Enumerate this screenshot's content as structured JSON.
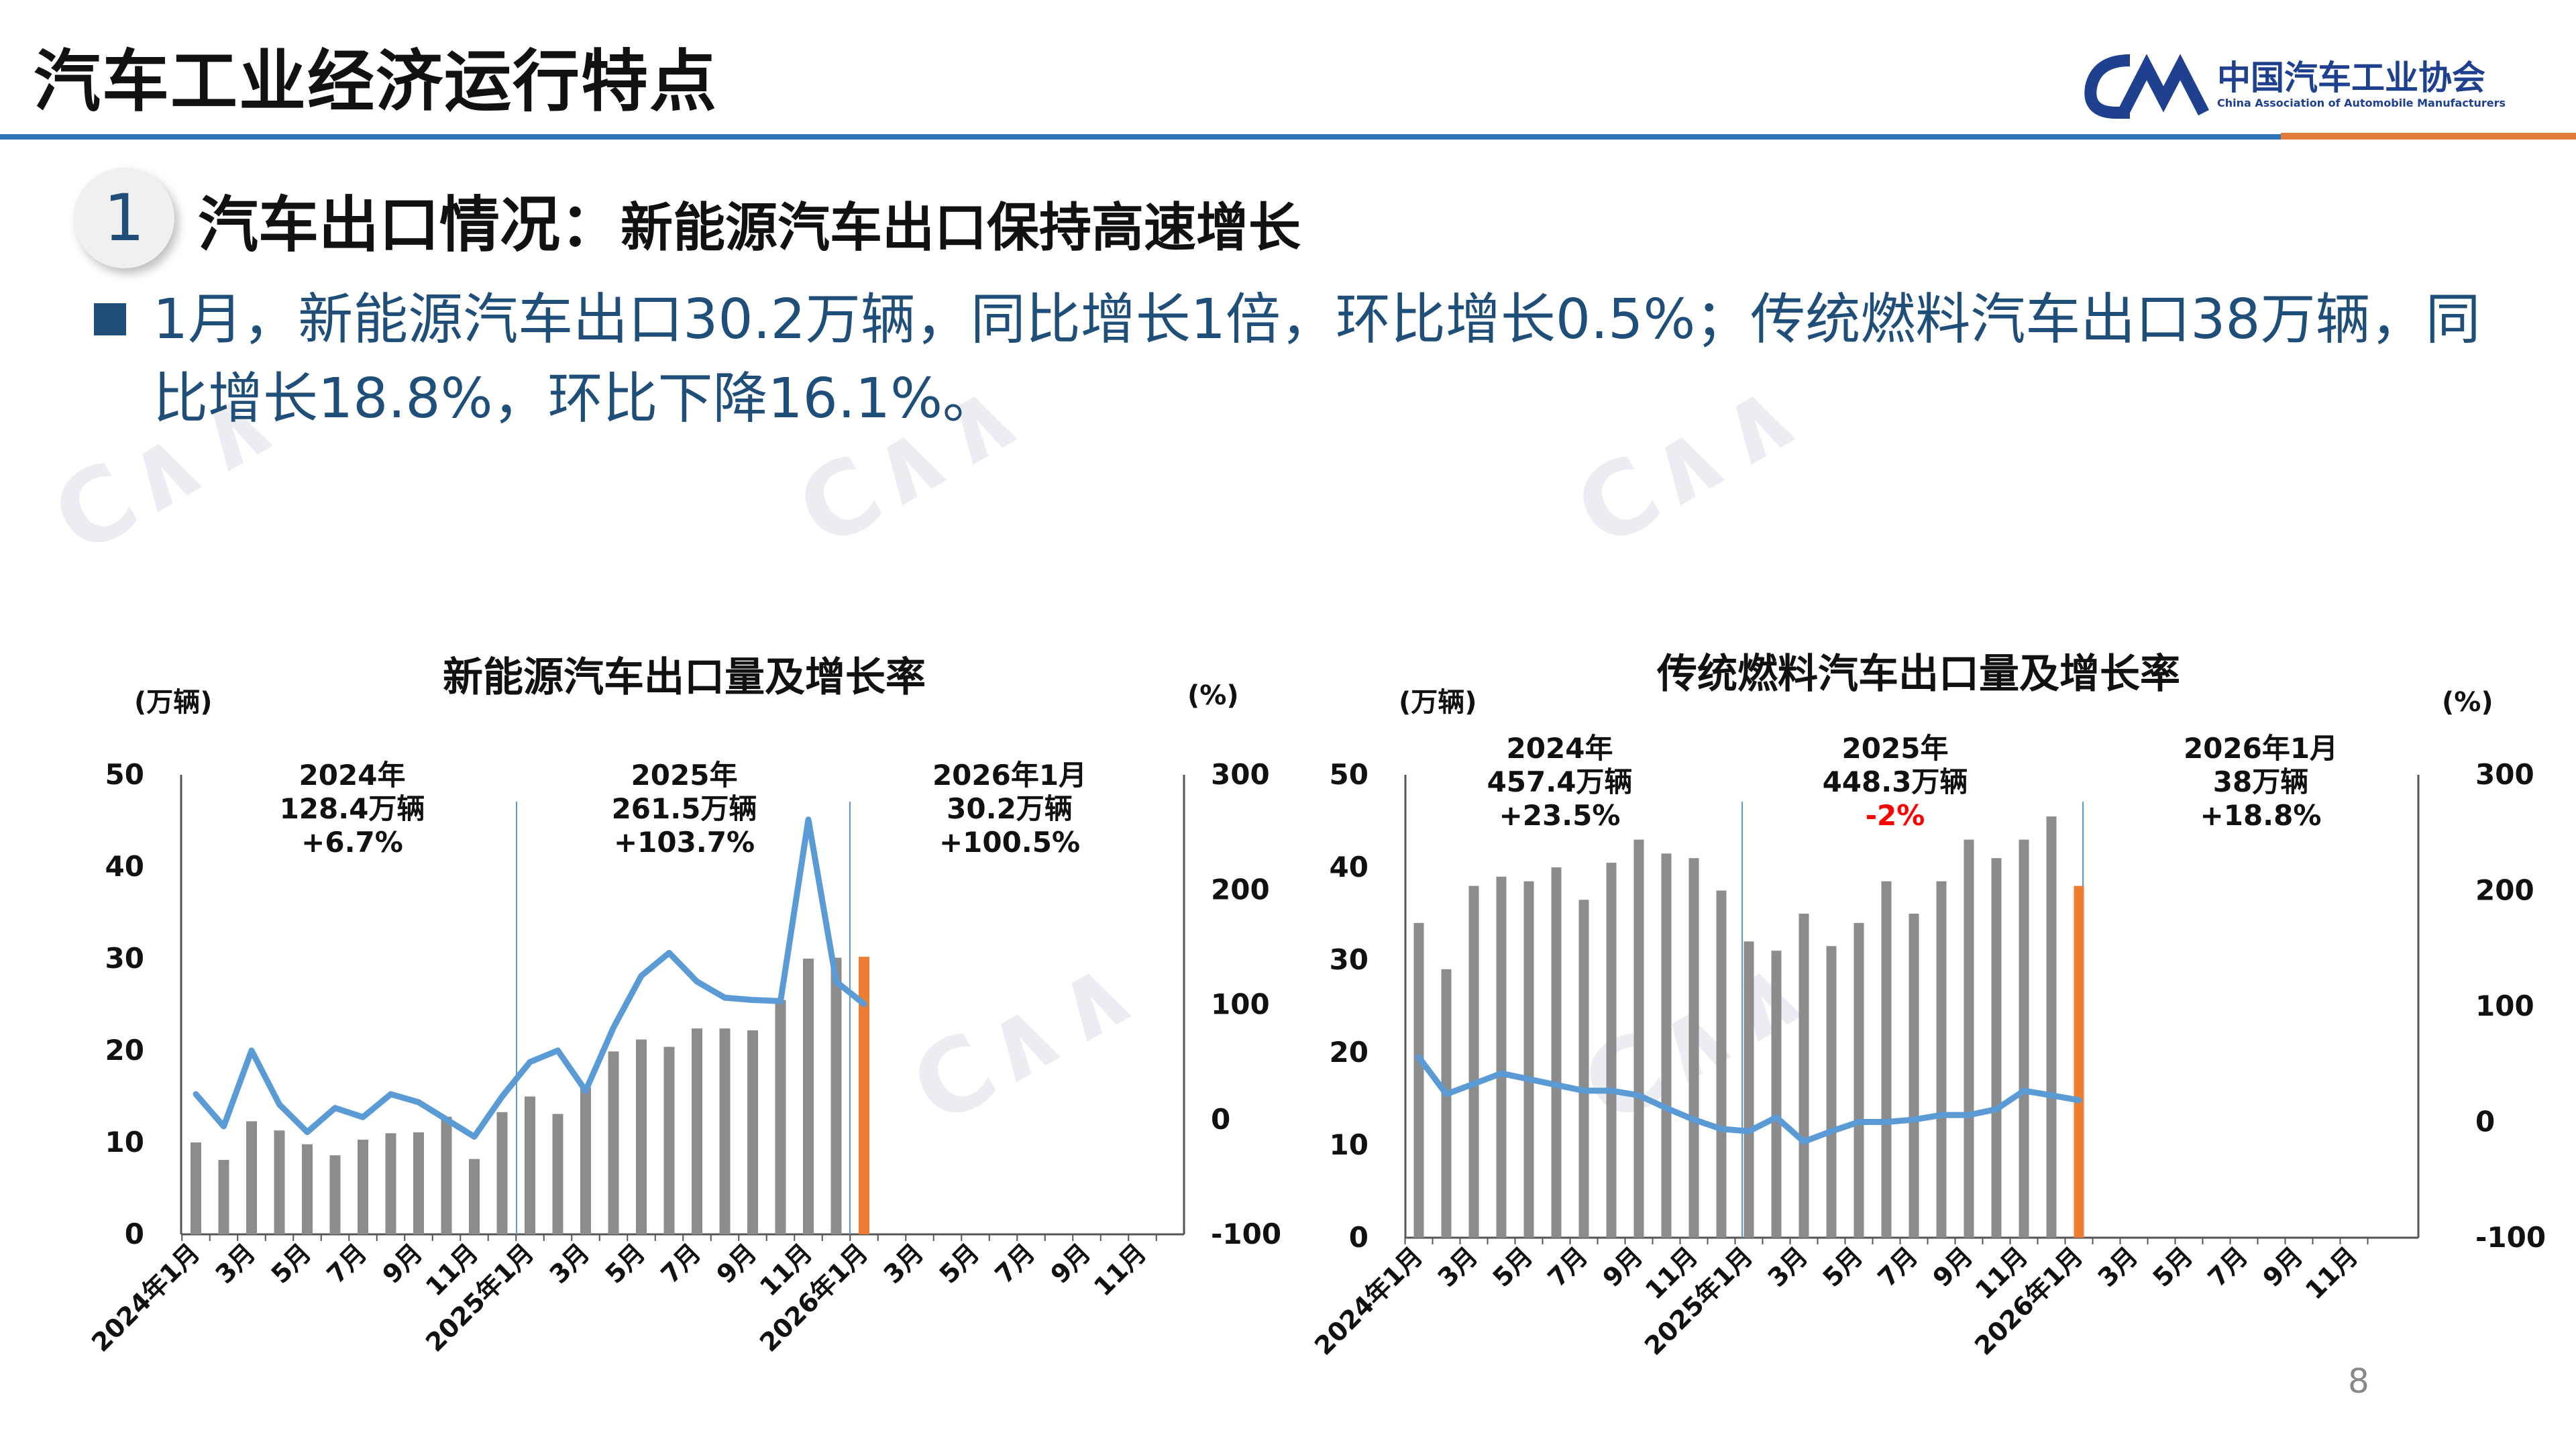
{
  "header": {
    "title": "汽车工业经济运行特点",
    "logo_cn": "中国汽车工业协会",
    "logo_en": "China Association of Automobile Manufacturers",
    "accent_color": "#2e75b6"
  },
  "section": {
    "number": "1",
    "title": "汽车出口情况：",
    "subtitle": "新能源汽车出口保持高速增长"
  },
  "bullet": "1月，新能源汽车出口30.2万辆，同比增长1倍，环比增长0.5%；传统燃料汽车出口38万辆，同比增长18.8%，环比下降16.1%。",
  "page_number": "8",
  "colors": {
    "bar": "#8c8c8c",
    "highlight_bar": "#ed7d31",
    "line": "#5b9bd5",
    "title_blue": "#1f4e79",
    "negative": "#ff0000"
  },
  "chart_data": [
    {
      "type": "bar",
      "title": "新能源汽车出口量及增长率",
      "left_unit": "(万辆)",
      "right_unit": "(%)",
      "left_ylim": [
        0,
        50
      ],
      "left_ticks": [
        "0",
        "10",
        "20",
        "30",
        "40",
        "50"
      ],
      "right_ylim": [
        -100,
        300
      ],
      "right_ticks": [
        "-100",
        "0",
        "100",
        "200",
        "300"
      ],
      "x_tick_labels": [
        "2024年1月",
        "3月",
        "5月",
        "7月",
        "9月",
        "11月",
        "2025年1月",
        "3月",
        "5月",
        "7月",
        "9月",
        "11月",
        "2026年1月",
        "3月",
        "5月",
        "7月",
        "9月",
        "11月"
      ],
      "categories": [
        "2024-01",
        "2024-02",
        "2024-03",
        "2024-04",
        "2024-05",
        "2024-06",
        "2024-07",
        "2024-08",
        "2024-09",
        "2024-10",
        "2024-11",
        "2024-12",
        "2025-01",
        "2025-02",
        "2025-03",
        "2025-04",
        "2025-05",
        "2025-06",
        "2025-07",
        "2025-08",
        "2025-09",
        "2025-10",
        "2025-11",
        "2025-12",
        "2026-01",
        "2026-02",
        "2026-03",
        "2026-04",
        "2026-05",
        "2026-06",
        "2026-07",
        "2026-08",
        "2026-09",
        "2026-10",
        "2026-11",
        "2026-12"
      ],
      "bars": [
        10.0,
        8.1,
        12.3,
        11.3,
        9.8,
        8.6,
        10.3,
        11.0,
        11.1,
        12.8,
        8.2,
        13.3,
        15.0,
        13.1,
        16.0,
        19.9,
        21.2,
        20.4,
        22.4,
        22.4,
        22.2,
        25.5,
        30.0,
        30.1,
        30.2
      ],
      "highlight_index": 24,
      "growth": [
        22,
        -6,
        60,
        13,
        -11,
        10,
        2,
        22,
        15,
        0,
        -15,
        20,
        50,
        60,
        25,
        80,
        125,
        145,
        120,
        106,
        104,
        103,
        261,
        120,
        100.5
      ],
      "annotations": [
        {
          "lines": [
            "2024年",
            "128.4万辆",
            "+6.7%"
          ]
        },
        {
          "lines": [
            "2025年",
            "261.5万辆",
            "+103.7%"
          ]
        },
        {
          "lines": [
            "2026年1月",
            "30.2万辆",
            "+100.5%"
          ]
        }
      ]
    },
    {
      "type": "bar",
      "title": "传统燃料汽车出口量及增长率",
      "left_unit": "(万辆)",
      "right_unit": "(%)",
      "left_ylim": [
        0,
        50
      ],
      "left_ticks": [
        "0",
        "10",
        "20",
        "30",
        "40",
        "50"
      ],
      "right_ylim": [
        -100,
        300
      ],
      "right_ticks": [
        "-100",
        "0",
        "100",
        "200",
        "300"
      ],
      "x_tick_labels": [
        "2024年1月",
        "3月",
        "5月",
        "7月",
        "9月",
        "11月",
        "2025年1月",
        "3月",
        "5月",
        "7月",
        "9月",
        "11月",
        "2026年1月",
        "3月",
        "5月",
        "7月",
        "9月",
        "11月"
      ],
      "categories": [
        "2024-01",
        "2024-02",
        "2024-03",
        "2024-04",
        "2024-05",
        "2024-06",
        "2024-07",
        "2024-08",
        "2024-09",
        "2024-10",
        "2024-11",
        "2024-12",
        "2025-01",
        "2025-02",
        "2025-03",
        "2025-04",
        "2025-05",
        "2025-06",
        "2025-07",
        "2025-08",
        "2025-09",
        "2025-10",
        "2025-11",
        "2025-12",
        "2026-01",
        "2026-02",
        "2026-03",
        "2026-04",
        "2026-05",
        "2026-06",
        "2026-07",
        "2026-08",
        "2026-09",
        "2026-10",
        "2026-11",
        "2026-12"
      ],
      "bars": [
        34.0,
        29.0,
        38.0,
        39.0,
        38.5,
        40.0,
        36.5,
        40.5,
        43.0,
        41.5,
        41.0,
        37.5,
        32.0,
        31.0,
        35.0,
        31.5,
        34.0,
        38.5,
        35.0,
        38.5,
        43.0,
        41.0,
        43.0,
        45.5,
        38.0
      ],
      "highlight_index": 24,
      "growth": [
        56,
        24,
        33,
        42,
        37,
        32,
        27,
        27,
        23,
        12,
        2,
        -6,
        -8,
        4,
        -17,
        -8,
        0,
        0,
        2,
        6,
        6,
        11,
        27,
        23,
        18.8
      ],
      "annotations": [
        {
          "lines": [
            "2024年",
            "457.4万辆",
            "+23.5%"
          ]
        },
        {
          "lines": [
            "2025年",
            "448.3万辆",
            "-2%"
          ]
        },
        {
          "lines": [
            "2026年1月",
            "38万辆",
            "+18.8%"
          ]
        }
      ]
    }
  ]
}
